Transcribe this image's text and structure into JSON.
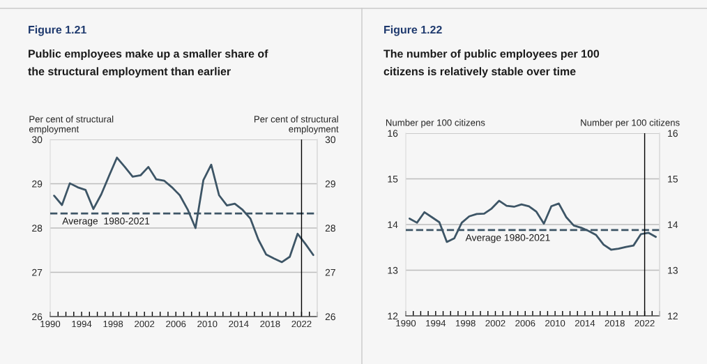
{
  "chart_data": [
    {
      "type": "line",
      "title": "Figure 1.21",
      "subtitle": "Public employees make up a smaller share of\nthe structural employment than earlier",
      "ylabel": "Per cent of structural\nemployment",
      "y2label": "Per cent of structural\nemployment",
      "x": [
        1990.5,
        1991.5,
        1992.5,
        1993.5,
        1994.5,
        1995.5,
        1996.5,
        1997.5,
        1998.5,
        1999.5,
        2000.5,
        2001.5,
        2002.5,
        2003.5,
        2004.5,
        2005.5,
        2006.5,
        2007.5,
        2008.5,
        2009.5,
        2010.5,
        2011.5,
        2012.5,
        2013.5,
        2014.5,
        2015.5,
        2016.5,
        2017.5,
        2018.5,
        2019.5,
        2020.5,
        2021.5,
        2022.5,
        2023.5
      ],
      "series": [
        {
          "color": "#3d5566",
          "values": [
            28.73,
            28.52,
            29.01,
            28.92,
            28.86,
            28.43,
            28.76,
            29.18,
            29.59,
            29.38,
            29.16,
            29.19,
            29.38,
            29.1,
            29.07,
            28.92,
            28.74,
            28.42,
            28.0,
            29.08,
            29.43,
            28.74,
            28.51,
            28.55,
            28.41,
            28.21,
            27.74,
            27.4,
            27.31,
            27.23,
            27.35,
            27.87,
            27.64,
            27.39
          ]
        }
      ],
      "xlim": [
        1990,
        2024
      ],
      "xticks": [
        1990,
        {
          "value": 1991,
          "label": null
        },
        {
          "value": 1992,
          "label": null
        },
        {
          "value": 1993,
          "label": null
        },
        1994,
        {
          "value": 1995,
          "label": null
        },
        {
          "value": 1996,
          "label": null
        },
        {
          "value": 1997,
          "label": null
        },
        1998,
        {
          "value": 1999,
          "label": null
        },
        {
          "value": 2000,
          "label": null
        },
        {
          "value": 2001,
          "label": null
        },
        2002,
        {
          "value": 2003,
          "label": null
        },
        {
          "value": 2004,
          "label": null
        },
        {
          "value": 2005,
          "label": null
        },
        2006,
        {
          "value": 2007,
          "label": null
        },
        {
          "value": 2008,
          "label": null
        },
        {
          "value": 2009,
          "label": null
        },
        2010,
        {
          "value": 2011,
          "label": null
        },
        {
          "value": 2012,
          "label": null
        },
        {
          "value": 2013,
          "label": null
        },
        2014,
        {
          "value": 2015,
          "label": null
        },
        {
          "value": 2016,
          "label": null
        },
        {
          "value": 2017,
          "label": null
        },
        2018,
        {
          "value": 2019,
          "label": null
        },
        {
          "value": 2020,
          "label": null
        },
        {
          "value": 2021,
          "label": null
        },
        2022,
        {
          "value": 2023,
          "label": null
        },
        {
          "value": 2024,
          "label": null
        }
      ],
      "ylim": [
        26,
        30
      ],
      "yticks": [
        26,
        27,
        28,
        29,
        30
      ],
      "y2lim": [
        26,
        30
      ],
      "y2ticks": [
        26,
        27,
        28,
        29,
        30
      ],
      "grid": "y",
      "legend": false,
      "ref_lines": [
        {
          "axis": "y",
          "value": 28.33,
          "color": "#3d5566",
          "line_style": "dashed"
        },
        {
          "axis": "x",
          "value": 2022,
          "color": "#000000",
          "line_style": "solid"
        }
      ],
      "annotations": [
        "Average  1980-2021"
      ]
    },
    {
      "type": "line",
      "title": "Figure 1.22",
      "subtitle": "The number of public employees per 100\ncitizens is relatively stable over time",
      "ylabel": "Number per 100 citizens",
      "y2label": "Number per 100 citizens",
      "x": [
        1990.5,
        1991.5,
        1992.5,
        1993.5,
        1994.5,
        1995.5,
        1996.5,
        1997.5,
        1998.5,
        1999.5,
        2000.5,
        2001.5,
        2002.5,
        2003.5,
        2004.5,
        2005.5,
        2006.5,
        2007.5,
        2008.5,
        2009.5,
        2010.5,
        2011.5,
        2012.5,
        2013.5,
        2014.5,
        2015.5,
        2016.5,
        2017.5,
        2018.5,
        2019.5,
        2020.5,
        2021.5,
        2022.5,
        2023.5
      ],
      "series": [
        {
          "color": "#3d5566",
          "values": [
            14.13,
            14.04,
            14.27,
            14.16,
            14.05,
            13.62,
            13.7,
            14.04,
            14.18,
            14.23,
            14.24,
            14.35,
            14.52,
            14.41,
            14.39,
            14.44,
            14.4,
            14.28,
            14.02,
            14.4,
            14.46,
            14.16,
            13.98,
            13.93,
            13.86,
            13.77,
            13.56,
            13.45,
            13.47,
            13.51,
            13.54,
            13.79,
            13.82,
            13.73
          ]
        }
      ],
      "xlim": [
        1990,
        2024
      ],
      "xticks": [
        1990,
        {
          "value": 1991,
          "label": null
        },
        {
          "value": 1992,
          "label": null
        },
        {
          "value": 1993,
          "label": null
        },
        1994,
        {
          "value": 1995,
          "label": null
        },
        {
          "value": 1996,
          "label": null
        },
        {
          "value": 1997,
          "label": null
        },
        1998,
        {
          "value": 1999,
          "label": null
        },
        {
          "value": 2000,
          "label": null
        },
        {
          "value": 2001,
          "label": null
        },
        2002,
        {
          "value": 2003,
          "label": null
        },
        {
          "value": 2004,
          "label": null
        },
        {
          "value": 2005,
          "label": null
        },
        2006,
        {
          "value": 2007,
          "label": null
        },
        {
          "value": 2008,
          "label": null
        },
        {
          "value": 2009,
          "label": null
        },
        2010,
        {
          "value": 2011,
          "label": null
        },
        {
          "value": 2012,
          "label": null
        },
        {
          "value": 2013,
          "label": null
        },
        2014,
        {
          "value": 2015,
          "label": null
        },
        {
          "value": 2016,
          "label": null
        },
        {
          "value": 2017,
          "label": null
        },
        2018,
        {
          "value": 2019,
          "label": null
        },
        {
          "value": 2020,
          "label": null
        },
        {
          "value": 2021,
          "label": null
        },
        2022,
        {
          "value": 2023,
          "label": null
        },
        {
          "value": 2024,
          "label": null
        }
      ],
      "ylim": [
        12,
        16
      ],
      "yticks": [
        12,
        13,
        14,
        15,
        16
      ],
      "y2lim": [
        12,
        16
      ],
      "y2ticks": [
        12,
        13,
        14,
        15,
        16
      ],
      "grid": "y",
      "legend": false,
      "ref_lines": [
        {
          "axis": "y",
          "value": 13.88,
          "color": "#3d5566",
          "line_style": "dashed"
        },
        {
          "axis": "x",
          "value": 2022,
          "color": "#000000",
          "line_style": "solid"
        }
      ],
      "annotations": [
        "Average 1980-2021"
      ]
    }
  ]
}
